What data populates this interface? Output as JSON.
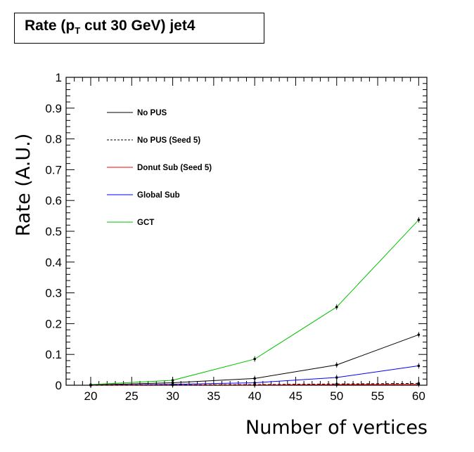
{
  "title": {
    "prefix": "Rate (p",
    "subscript": "T",
    "suffix": " cut 30 GeV) jet4"
  },
  "chart_data": {
    "type": "line",
    "title": "Rate (p_T cut 30 GeV) jet4",
    "xlabel": "Number of vertices",
    "ylabel": "Rate (A.U.)",
    "xlim": [
      17,
      61
    ],
    "ylim": [
      0,
      1
    ],
    "x_ticks": [
      20,
      25,
      30,
      35,
      40,
      45,
      50,
      55,
      60
    ],
    "y_ticks": [
      0,
      0.1,
      0.2,
      0.3,
      0.4,
      0.5,
      0.6,
      0.7,
      0.8,
      0.9,
      1
    ],
    "y_tick_labels": [
      "0",
      "0.1",
      "0.2",
      "0.3",
      "0.4",
      "0.5",
      "0.6",
      "0.7",
      "0.8",
      "0.9",
      "1"
    ],
    "grid": false,
    "legend_position": "top-left",
    "x": [
      20,
      30,
      40,
      50,
      60
    ],
    "series": [
      {
        "name": "No PUS",
        "color": "#000000",
        "dash": "solid",
        "values": [
          0.001,
          0.008,
          0.022,
          0.066,
          0.164
        ]
      },
      {
        "name": "No PUS (Seed 5)",
        "color": "#000000",
        "dash": "dashed",
        "values": [
          0.0,
          0.001,
          0.002,
          0.004,
          0.006
        ]
      },
      {
        "name": "Donut Sub (Seed 5)",
        "color": "#ff0000",
        "dash": "solid",
        "values": [
          0.0,
          0.001,
          0.001,
          0.002,
          0.003
        ]
      },
      {
        "name": "Global Sub",
        "color": "#0000ff",
        "dash": "solid",
        "values": [
          0.0,
          0.003,
          0.008,
          0.025,
          0.063
        ]
      },
      {
        "name": "GCT",
        "color": "#00c000",
        "dash": "solid",
        "values": [
          0.002,
          0.016,
          0.085,
          0.254,
          0.537
        ]
      }
    ]
  }
}
